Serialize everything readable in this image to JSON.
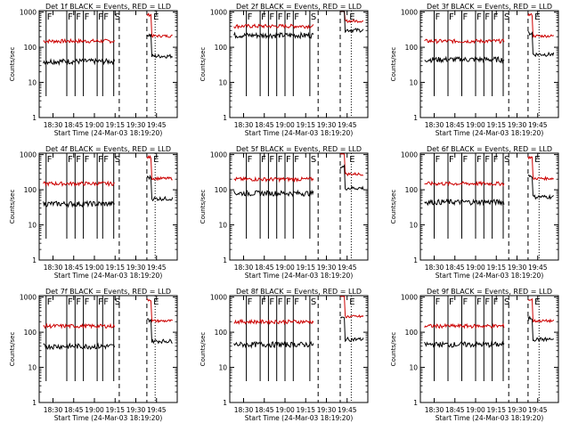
{
  "figure": {
    "xlabel": "Start Time (24-Mar-03 18:19:20)",
    "ylabel": "Counts/sec",
    "x_tick_labels": [
      "18:30",
      "18:45",
      "19:00",
      "19:15",
      "19:30",
      "19:45"
    ],
    "y_tick_labels": [
      "1",
      "10",
      "100",
      "1000"
    ],
    "colors": {
      "events": "#000000",
      "lld": "#cc0000",
      "axes": "#000000"
    }
  },
  "chart_data": [
    {
      "type": "line",
      "title": "Det 1f BLACK = Events, RED = LLD",
      "x_unit": "minutes after 18:19:20",
      "ylim": [
        1,
        1100
      ],
      "yscale": "log",
      "xlim": [
        0,
        100
      ],
      "series": [
        {
          "name": "Events",
          "level": 40
        },
        {
          "name": "LLD",
          "level": 150
        }
      ],
      "markers": [
        {
          "label": "F",
          "x": 5
        },
        {
          "label": "F",
          "x": 20
        },
        {
          "label": "F",
          "x": 26
        },
        {
          "label": "F",
          "x": 32
        },
        {
          "label": "F",
          "x": 42
        },
        {
          "label": "F",
          "x": 46
        },
        {
          "label": "S",
          "x": 54
        },
        {
          "label": "E",
          "x": 82
        }
      ],
      "dashed_lines": [
        58,
        78
      ],
      "dotted_lines": [
        84
      ]
    },
    {
      "type": "line",
      "title": "Det 2f BLACK = Events, RED = LLD",
      "x_unit": "minutes after 18:19:20",
      "ylim": [
        1,
        1100
      ],
      "yscale": "log",
      "xlim": [
        0,
        100
      ],
      "series": [
        {
          "name": "Events",
          "level": 220
        },
        {
          "name": "LLD",
          "level": 400
        }
      ],
      "markers": [
        {
          "label": "F",
          "x": 12
        },
        {
          "label": "F",
          "x": 22
        },
        {
          "label": "F",
          "x": 28
        },
        {
          "label": "F",
          "x": 34
        },
        {
          "label": "F",
          "x": 40
        },
        {
          "label": "F",
          "x": 46
        },
        {
          "label": "S",
          "x": 58
        },
        {
          "label": "E",
          "x": 86
        }
      ],
      "dashed_lines": [
        64,
        80
      ],
      "dotted_lines": [
        88
      ]
    },
    {
      "type": "line",
      "title": "Det 3f BLACK = Events, RED = LLD",
      "x_unit": "minutes after 18:19:20",
      "ylim": [
        1,
        1100
      ],
      "yscale": "log",
      "xlim": [
        0,
        100
      ],
      "series": [
        {
          "name": "Events",
          "level": 45
        },
        {
          "name": "LLD",
          "level": 150
        }
      ],
      "markers": [
        {
          "label": "F",
          "x": 10
        },
        {
          "label": "F",
          "x": 20
        },
        {
          "label": "F",
          "x": 30
        },
        {
          "label": "F",
          "x": 40
        },
        {
          "label": "F",
          "x": 46
        },
        {
          "label": "F",
          "x": 52
        },
        {
          "label": "S",
          "x": 60
        },
        {
          "label": "E",
          "x": 82
        }
      ],
      "dashed_lines": [
        64,
        78
      ],
      "dotted_lines": [
        86
      ]
    },
    {
      "type": "line",
      "title": "Det 4f BLACK = Events, RED = LLD",
      "x_unit": "minutes after 18:19:20",
      "ylim": [
        1,
        1100
      ],
      "yscale": "log",
      "xlim": [
        0,
        100
      ],
      "series": [
        {
          "name": "Events",
          "level": 40
        },
        {
          "name": "LLD",
          "level": 150
        }
      ],
      "markers": [
        {
          "label": "F",
          "x": 5
        },
        {
          "label": "F",
          "x": 20
        },
        {
          "label": "F",
          "x": 26
        },
        {
          "label": "F",
          "x": 32
        },
        {
          "label": "F",
          "x": 42
        },
        {
          "label": "F",
          "x": 46
        },
        {
          "label": "S",
          "x": 54
        },
        {
          "label": "E",
          "x": 82
        }
      ],
      "dashed_lines": [
        58,
        78
      ],
      "dotted_lines": [
        84
      ]
    },
    {
      "type": "line",
      "title": "Det 5f BLACK = Events, RED = LLD",
      "x_unit": "minutes after 18:19:20",
      "ylim": [
        1,
        1100
      ],
      "yscale": "log",
      "xlim": [
        0,
        100
      ],
      "series": [
        {
          "name": "Events",
          "level": 80
        },
        {
          "name": "LLD",
          "level": 200
        }
      ],
      "markers": [
        {
          "label": "F",
          "x": 12
        },
        {
          "label": "F",
          "x": 22
        },
        {
          "label": "F",
          "x": 28
        },
        {
          "label": "F",
          "x": 34
        },
        {
          "label": "F",
          "x": 40
        },
        {
          "label": "F",
          "x": 46
        },
        {
          "label": "S",
          "x": 58
        },
        {
          "label": "E",
          "x": 86
        }
      ],
      "dashed_lines": [
        64,
        80
      ],
      "dotted_lines": [
        88
      ]
    },
    {
      "type": "line",
      "title": "Det 6f BLACK = Events, RED = LLD",
      "x_unit": "minutes after 18:19:20",
      "ylim": [
        1,
        1100
      ],
      "yscale": "log",
      "xlim": [
        0,
        100
      ],
      "series": [
        {
          "name": "Events",
          "level": 45
        },
        {
          "name": "LLD",
          "level": 150
        }
      ],
      "markers": [
        {
          "label": "F",
          "x": 10
        },
        {
          "label": "F",
          "x": 20
        },
        {
          "label": "F",
          "x": 30
        },
        {
          "label": "F",
          "x": 40
        },
        {
          "label": "F",
          "x": 46
        },
        {
          "label": "F",
          "x": 52
        },
        {
          "label": "S",
          "x": 60
        },
        {
          "label": "E",
          "x": 82
        }
      ],
      "dashed_lines": [
        64,
        78
      ],
      "dotted_lines": [
        86
      ]
    },
    {
      "type": "line",
      "title": "Det 7f BLACK = Events, RED = LLD",
      "x_unit": "minutes after 18:19:20",
      "ylim": [
        1,
        1100
      ],
      "yscale": "log",
      "xlim": [
        0,
        100
      ],
      "series": [
        {
          "name": "Events",
          "level": 40
        },
        {
          "name": "LLD",
          "level": 150
        }
      ],
      "markers": [
        {
          "label": "F",
          "x": 5
        },
        {
          "label": "F",
          "x": 20
        },
        {
          "label": "F",
          "x": 26
        },
        {
          "label": "F",
          "x": 32
        },
        {
          "label": "F",
          "x": 42
        },
        {
          "label": "F",
          "x": 46
        },
        {
          "label": "S",
          "x": 54
        },
        {
          "label": "E",
          "x": 82
        }
      ],
      "dashed_lines": [
        58,
        78
      ],
      "dotted_lines": [
        84
      ]
    },
    {
      "type": "line",
      "title": "Det 8f BLACK = Events, RED = LLD",
      "x_unit": "minutes after 18:19:20",
      "ylim": [
        1,
        1100
      ],
      "yscale": "log",
      "xlim": [
        0,
        100
      ],
      "series": [
        {
          "name": "Events",
          "level": 45
        },
        {
          "name": "LLD",
          "level": 200
        }
      ],
      "markers": [
        {
          "label": "F",
          "x": 12
        },
        {
          "label": "F",
          "x": 22
        },
        {
          "label": "F",
          "x": 28
        },
        {
          "label": "F",
          "x": 34
        },
        {
          "label": "F",
          "x": 40
        },
        {
          "label": "F",
          "x": 46
        },
        {
          "label": "S",
          "x": 58
        },
        {
          "label": "E",
          "x": 86
        }
      ],
      "dashed_lines": [
        64,
        80
      ],
      "dotted_lines": [
        88
      ]
    },
    {
      "type": "line",
      "title": "Det 9f BLACK = Events, RED = LLD",
      "x_unit": "minutes after 18:19:20",
      "ylim": [
        1,
        1100
      ],
      "yscale": "log",
      "xlim": [
        0,
        100
      ],
      "series": [
        {
          "name": "Events",
          "level": 45
        },
        {
          "name": "LLD",
          "level": 150
        }
      ],
      "markers": [
        {
          "label": "F",
          "x": 10
        },
        {
          "label": "F",
          "x": 20
        },
        {
          "label": "F",
          "x": 30
        },
        {
          "label": "F",
          "x": 40
        },
        {
          "label": "F",
          "x": 46
        },
        {
          "label": "F",
          "x": 52
        },
        {
          "label": "S",
          "x": 60
        },
        {
          "label": "E",
          "x": 82
        }
      ],
      "dashed_lines": [
        64,
        78
      ],
      "dotted_lines": [
        86
      ]
    }
  ]
}
